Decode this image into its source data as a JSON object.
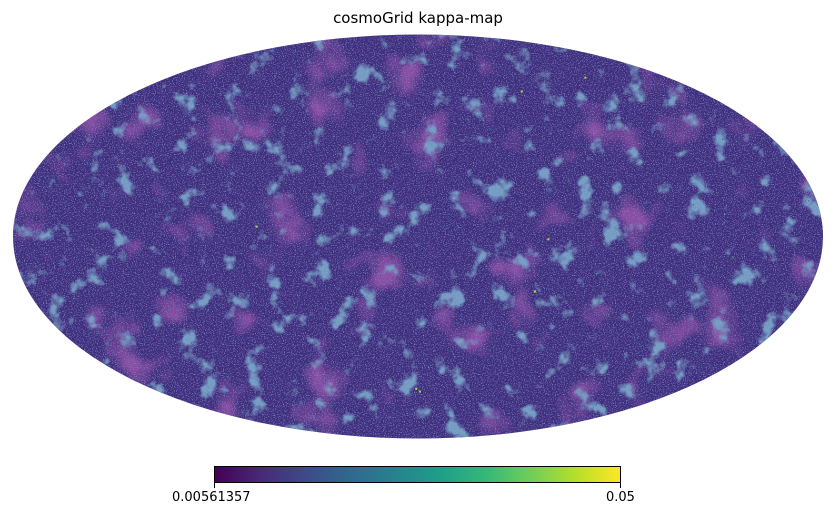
{
  "plot": {
    "title": "cosmoGrid kappa-map",
    "projection": "mollweide",
    "colormap": "viridis",
    "colormap_colors": [
      "#440154",
      "#482878",
      "#3e4a89",
      "#31688e",
      "#26828e",
      "#1f9e89",
      "#35b779",
      "#6ece58",
      "#b5de2b",
      "#fde725"
    ],
    "background_fill": "#3f2e7c"
  },
  "colorbar": {
    "min_label": "0.00561357",
    "max_label": "0.05",
    "min_value": 0.00561357,
    "max_value": 0.05
  }
}
